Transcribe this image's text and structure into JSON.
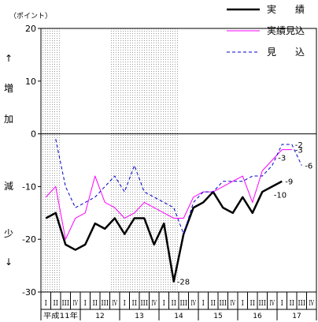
{
  "chart_data": {
    "type": "line",
    "unit_label": "（ポイント）",
    "ylabel_lines": [
      "↑",
      "増",
      "加",
      "減",
      "少",
      "↓"
    ],
    "ylim": [
      -30,
      20
    ],
    "yticks": [
      20,
      10,
      0,
      -10,
      -20,
      -30
    ],
    "ytick_labels": [
      "20",
      "10",
      "0",
      "-10",
      "-20",
      "-30"
    ],
    "quarter_labels": [
      "I",
      "II",
      "III",
      "IV",
      "I",
      "II",
      "III",
      "IV",
      "I",
      "II",
      "III",
      "IV",
      "I",
      "II",
      "III",
      "IV",
      "I",
      "II",
      "III",
      "IV",
      "I",
      "II",
      "III",
      "IV",
      "I",
      "II",
      "III",
      "IV"
    ],
    "year_labels": [
      {
        "label": "平成11年",
        "start": 0,
        "end": 3
      },
      {
        "label": "12",
        "start": 4,
        "end": 7
      },
      {
        "label": "13",
        "start": 8,
        "end": 11
      },
      {
        "label": "14",
        "start": 12,
        "end": 15
      },
      {
        "label": "15",
        "start": 16,
        "end": 19
      },
      {
        "label": "16",
        "start": 20,
        "end": 23
      },
      {
        "label": "17",
        "start": 24,
        "end": 27
      }
    ],
    "shaded_ranges": [
      [
        0,
        1
      ],
      [
        7,
        13
      ]
    ],
    "series": [
      {
        "name": "実　　績",
        "color": "#000000",
        "style": "solid-thick",
        "values": [
          -16,
          -15,
          -21,
          -22,
          -21,
          -17,
          -18,
          -16,
          -19,
          -16,
          -16,
          -21,
          -17,
          -28,
          -19,
          -14,
          -13,
          -11,
          -14,
          -15,
          -12,
          -15,
          -11,
          -10,
          -9,
          null,
          null,
          null
        ]
      },
      {
        "name": "実績見込",
        "color": "#ff00ff",
        "style": "solid",
        "values": [
          -12,
          -10,
          -20,
          -16,
          -15,
          -8,
          -13,
          -14,
          -16,
          -15,
          -13,
          -14,
          -15,
          -16,
          -16,
          -12,
          -11,
          -11,
          -10,
          -9,
          -8,
          -13,
          -7,
          -5,
          -3,
          -3,
          null,
          null
        ]
      },
      {
        "name": "見　　込",
        "color": "#0000cc",
        "style": "dashed",
        "values": [
          null,
          -1,
          -10,
          -14,
          -13,
          -12,
          -10,
          -8,
          -11,
          -6,
          -11,
          -12,
          -13,
          -14,
          -19,
          -13,
          -11,
          -11,
          -9,
          -9,
          -9,
          -8,
          -8,
          -6,
          -2,
          -2,
          -6,
          null
        ]
      }
    ],
    "data_labels": [
      {
        "series": 0,
        "index": 13,
        "text": "-28",
        "pos": "right"
      },
      {
        "series": 0,
        "index": 23,
        "text": "-10",
        "pos": "below-right"
      },
      {
        "series": 0,
        "index": 24,
        "text": "-9",
        "pos": "right"
      },
      {
        "series": 1,
        "index": 24,
        "text": "-3",
        "pos": "below"
      },
      {
        "series": 1,
        "index": 25,
        "text": "-3",
        "pos": "right"
      },
      {
        "series": 2,
        "index": 25,
        "text": "-2",
        "pos": "right"
      },
      {
        "series": 2,
        "index": 26,
        "text": "-6",
        "pos": "right"
      }
    ],
    "legend": [
      {
        "label": "実　　績",
        "color": "#000000",
        "style": "solid-thick"
      },
      {
        "label": "実績見込",
        "color": "#ff00ff",
        "style": "solid"
      },
      {
        "label": "見　　込",
        "color": "#0000cc",
        "style": "dashed"
      }
    ],
    "legend_placement": "top-right"
  }
}
